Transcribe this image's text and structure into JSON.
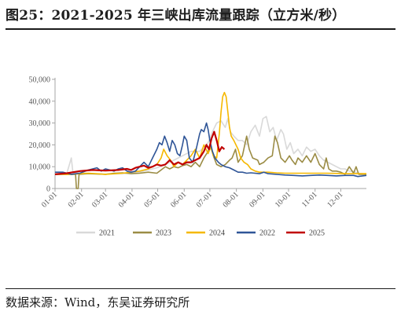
{
  "header": {
    "title": "图25：2021-2025 年三峡出库流量跟踪（立方米/秒）"
  },
  "footer": {
    "source": "数据来源：Wind，东吴证券研究所"
  },
  "chart_data": {
    "type": "line",
    "title": "",
    "xlabel": "",
    "ylabel": "",
    "ylim": [
      0,
      50000
    ],
    "yticks": [
      0,
      10000,
      20000,
      30000,
      40000,
      50000
    ],
    "ytick_labels": [
      "0",
      "10,000",
      "20,000",
      "30,000",
      "40,000",
      "50,000"
    ],
    "xlim": [
      1,
      365
    ],
    "xticks": [
      {
        "label": "01-01",
        "doy": 1
      },
      {
        "label": "02-01",
        "doy": 32
      },
      {
        "label": "03-01",
        "doy": 60
      },
      {
        "label": "04-01",
        "doy": 91
      },
      {
        "label": "05-01",
        "doy": 121
      },
      {
        "label": "06-01",
        "doy": 152
      },
      {
        "label": "07-01",
        "doy": 182
      },
      {
        "label": "08-01",
        "doy": 213
      },
      {
        "label": "09-01",
        "doy": 244
      },
      {
        "label": "10-01",
        "doy": 274
      },
      {
        "label": "11-01",
        "doy": 305
      },
      {
        "label": "12-01",
        "doy": 335
      }
    ],
    "grid": false,
    "legend_position": "bottom",
    "series": [
      {
        "name": "2021",
        "color": "#d9d9d9",
        "points": [
          [
            1,
            7000
          ],
          [
            15,
            7200
          ],
          [
            20,
            14000
          ],
          [
            22,
            7200
          ],
          [
            40,
            7000
          ],
          [
            60,
            6600
          ],
          [
            80,
            6800
          ],
          [
            100,
            7500
          ],
          [
            120,
            9500
          ],
          [
            130,
            11000
          ],
          [
            140,
            13000
          ],
          [
            150,
            15000
          ],
          [
            160,
            17000
          ],
          [
            170,
            17000
          ],
          [
            180,
            21000
          ],
          [
            185,
            26000
          ],
          [
            190,
            30000
          ],
          [
            195,
            31000
          ],
          [
            200,
            28000
          ],
          [
            203,
            32000
          ],
          [
            206,
            26000
          ],
          [
            210,
            24000
          ],
          [
            215,
            22000
          ],
          [
            220,
            22000
          ],
          [
            225,
            20000
          ],
          [
            230,
            26000
          ],
          [
            235,
            29000
          ],
          [
            240,
            24000
          ],
          [
            244,
            32000
          ],
          [
            248,
            33000
          ],
          [
            252,
            26000
          ],
          [
            256,
            28000
          ],
          [
            260,
            22000
          ],
          [
            265,
            27000
          ],
          [
            268,
            25000
          ],
          [
            272,
            18000
          ],
          [
            276,
            21000
          ],
          [
            280,
            16000
          ],
          [
            285,
            18000
          ],
          [
            290,
            15000
          ],
          [
            295,
            19000
          ],
          [
            300,
            17000
          ],
          [
            305,
            18000
          ],
          [
            310,
            15000
          ],
          [
            315,
            13000
          ],
          [
            320,
            12000
          ],
          [
            325,
            11000
          ],
          [
            330,
            10000
          ],
          [
            335,
            9000
          ],
          [
            340,
            9000
          ],
          [
            345,
            8000
          ],
          [
            350,
            7800
          ],
          [
            355,
            7000
          ],
          [
            360,
            6800
          ],
          [
            365,
            6500
          ]
        ]
      },
      {
        "name": "2023",
        "color": "#9b8c45",
        "points": [
          [
            1,
            6500
          ],
          [
            10,
            6500
          ],
          [
            20,
            6500
          ],
          [
            25,
            6500
          ],
          [
            26,
            0
          ],
          [
            28,
            0
          ],
          [
            29,
            6500
          ],
          [
            40,
            6800
          ],
          [
            60,
            6500
          ],
          [
            70,
            7000
          ],
          [
            80,
            7200
          ],
          [
            90,
            6800
          ],
          [
            100,
            7000
          ],
          [
            110,
            7500
          ],
          [
            120,
            7000
          ],
          [
            125,
            8500
          ],
          [
            130,
            10000
          ],
          [
            135,
            9000
          ],
          [
            140,
            10000
          ],
          [
            145,
            9500
          ],
          [
            150,
            10500
          ],
          [
            155,
            11000
          ],
          [
            160,
            10000
          ],
          [
            165,
            12000
          ],
          [
            170,
            10000
          ],
          [
            175,
            14000
          ],
          [
            180,
            17000
          ],
          [
            183,
            20000
          ],
          [
            186,
            15000
          ],
          [
            190,
            11000
          ],
          [
            195,
            10000
          ],
          [
            200,
            11000
          ],
          [
            205,
            13000
          ],
          [
            208,
            14000
          ],
          [
            212,
            18000
          ],
          [
            215,
            12000
          ],
          [
            220,
            15000
          ],
          [
            225,
            24000
          ],
          [
            228,
            18000
          ],
          [
            232,
            14000
          ],
          [
            238,
            13000
          ],
          [
            240,
            11000
          ],
          [
            245,
            12000
          ],
          [
            250,
            14000
          ],
          [
            255,
            15000
          ],
          [
            258,
            24000
          ],
          [
            261,
            21000
          ],
          [
            265,
            14000
          ],
          [
            270,
            12000
          ],
          [
            275,
            15000
          ],
          [
            278,
            13000
          ],
          [
            282,
            11000
          ],
          [
            285,
            14000
          ],
          [
            290,
            12000
          ],
          [
            295,
            15000
          ],
          [
            300,
            12000
          ],
          [
            305,
            16000
          ],
          [
            310,
            11000
          ],
          [
            315,
            9000
          ],
          [
            318,
            14000
          ],
          [
            321,
            9000
          ],
          [
            325,
            8000
          ],
          [
            330,
            8000
          ],
          [
            335,
            7500
          ],
          [
            340,
            6500
          ],
          [
            345,
            10000
          ],
          [
            350,
            7000
          ],
          [
            353,
            10000
          ],
          [
            356,
            6500
          ],
          [
            360,
            6500
          ],
          [
            365,
            6500
          ]
        ]
      },
      {
        "name": "2024",
        "color": "#f5b800",
        "points": [
          [
            1,
            6500
          ],
          [
            20,
            6500
          ],
          [
            40,
            7000
          ],
          [
            60,
            6500
          ],
          [
            80,
            7000
          ],
          [
            100,
            8000
          ],
          [
            110,
            9000
          ],
          [
            115,
            10000
          ],
          [
            120,
            11000
          ],
          [
            125,
            14000
          ],
          [
            128,
            18000
          ],
          [
            132,
            15000
          ],
          [
            136,
            13000
          ],
          [
            140,
            10000
          ],
          [
            145,
            12000
          ],
          [
            150,
            11000
          ],
          [
            155,
            13000
          ],
          [
            160,
            15000
          ],
          [
            165,
            18000
          ],
          [
            170,
            14000
          ],
          [
            175,
            20000
          ],
          [
            180,
            16000
          ],
          [
            183,
            19000
          ],
          [
            186,
            15000
          ],
          [
            190,
            14000
          ],
          [
            193,
            25000
          ],
          [
            195,
            35000
          ],
          [
            197,
            42000
          ],
          [
            199,
            44000
          ],
          [
            201,
            42000
          ],
          [
            203,
            35000
          ],
          [
            205,
            28000
          ],
          [
            207,
            24000
          ],
          [
            210,
            22000
          ],
          [
            215,
            18000
          ],
          [
            218,
            14000
          ],
          [
            222,
            12000
          ],
          [
            226,
            11000
          ],
          [
            230,
            9000
          ],
          [
            235,
            8000
          ],
          [
            240,
            7500
          ],
          [
            250,
            7500
          ],
          [
            260,
            7200
          ],
          [
            270,
            7000
          ],
          [
            280,
            7000
          ],
          [
            300,
            7000
          ],
          [
            320,
            7000
          ],
          [
            340,
            6800
          ],
          [
            365,
            6800
          ]
        ]
      },
      {
        "name": "2022",
        "color": "#2f5597",
        "points": [
          [
            1,
            7500
          ],
          [
            10,
            7500
          ],
          [
            20,
            6500
          ],
          [
            30,
            7000
          ],
          [
            40,
            8500
          ],
          [
            45,
            9000
          ],
          [
            50,
            9500
          ],
          [
            55,
            8000
          ],
          [
            60,
            9000
          ],
          [
            65,
            8500
          ],
          [
            70,
            8000
          ],
          [
            75,
            9000
          ],
          [
            80,
            9500
          ],
          [
            85,
            8000
          ],
          [
            90,
            7500
          ],
          [
            95,
            8000
          ],
          [
            100,
            10000
          ],
          [
            105,
            12000
          ],
          [
            110,
            10000
          ],
          [
            115,
            14000
          ],
          [
            120,
            18000
          ],
          [
            123,
            21000
          ],
          [
            126,
            20000
          ],
          [
            129,
            24000
          ],
          [
            132,
            21000
          ],
          [
            135,
            17000
          ],
          [
            138,
            22000
          ],
          [
            141,
            20000
          ],
          [
            144,
            16000
          ],
          [
            147,
            15000
          ],
          [
            150,
            20000
          ],
          [
            152,
            24000
          ],
          [
            155,
            22000
          ],
          [
            158,
            14000
          ],
          [
            162,
            12000
          ],
          [
            166,
            18000
          ],
          [
            170,
            25000
          ],
          [
            172,
            27000
          ],
          [
            175,
            26000
          ],
          [
            178,
            30000
          ],
          [
            180,
            27000
          ],
          [
            182,
            22000
          ],
          [
            185,
            17000
          ],
          [
            188,
            14000
          ],
          [
            192,
            12000
          ],
          [
            195,
            11000
          ],
          [
            200,
            10000
          ],
          [
            205,
            9500
          ],
          [
            210,
            8500
          ],
          [
            215,
            7500
          ],
          [
            220,
            7500
          ],
          [
            225,
            7000
          ],
          [
            230,
            7200
          ],
          [
            240,
            6800
          ],
          [
            245,
            7500
          ],
          [
            250,
            6800
          ],
          [
            260,
            6500
          ],
          [
            270,
            6200
          ],
          [
            280,
            6000
          ],
          [
            290,
            5800
          ],
          [
            300,
            6000
          ],
          [
            310,
            6200
          ],
          [
            320,
            6000
          ],
          [
            330,
            5800
          ],
          [
            340,
            6000
          ],
          [
            350,
            6000
          ],
          [
            355,
            5500
          ],
          [
            365,
            6000
          ]
        ]
      },
      {
        "name": "2025",
        "color": "#c00000",
        "points": [
          [
            1,
            6500
          ],
          [
            15,
            7000
          ],
          [
            30,
            8000
          ],
          [
            45,
            8500
          ],
          [
            60,
            8200
          ],
          [
            75,
            8500
          ],
          [
            85,
            9000
          ],
          [
            90,
            8500
          ],
          [
            95,
            9500
          ],
          [
            100,
            10000
          ],
          [
            105,
            10500
          ],
          [
            110,
            9500
          ],
          [
            115,
            10000
          ],
          [
            120,
            11000
          ],
          [
            125,
            10500
          ],
          [
            130,
            11000
          ],
          [
            135,
            13000
          ],
          [
            140,
            11000
          ],
          [
            145,
            12000
          ],
          [
            150,
            11000
          ],
          [
            155,
            12000
          ],
          [
            160,
            12000
          ],
          [
            165,
            13000
          ],
          [
            170,
            14000
          ],
          [
            175,
            17000
          ],
          [
            178,
            20000
          ],
          [
            181,
            18000
          ],
          [
            184,
            23000
          ],
          [
            187,
            26000
          ],
          [
            190,
            22000
          ],
          [
            193,
            17000
          ],
          [
            196,
            19000
          ],
          [
            199,
            18000
          ]
        ]
      }
    ]
  }
}
